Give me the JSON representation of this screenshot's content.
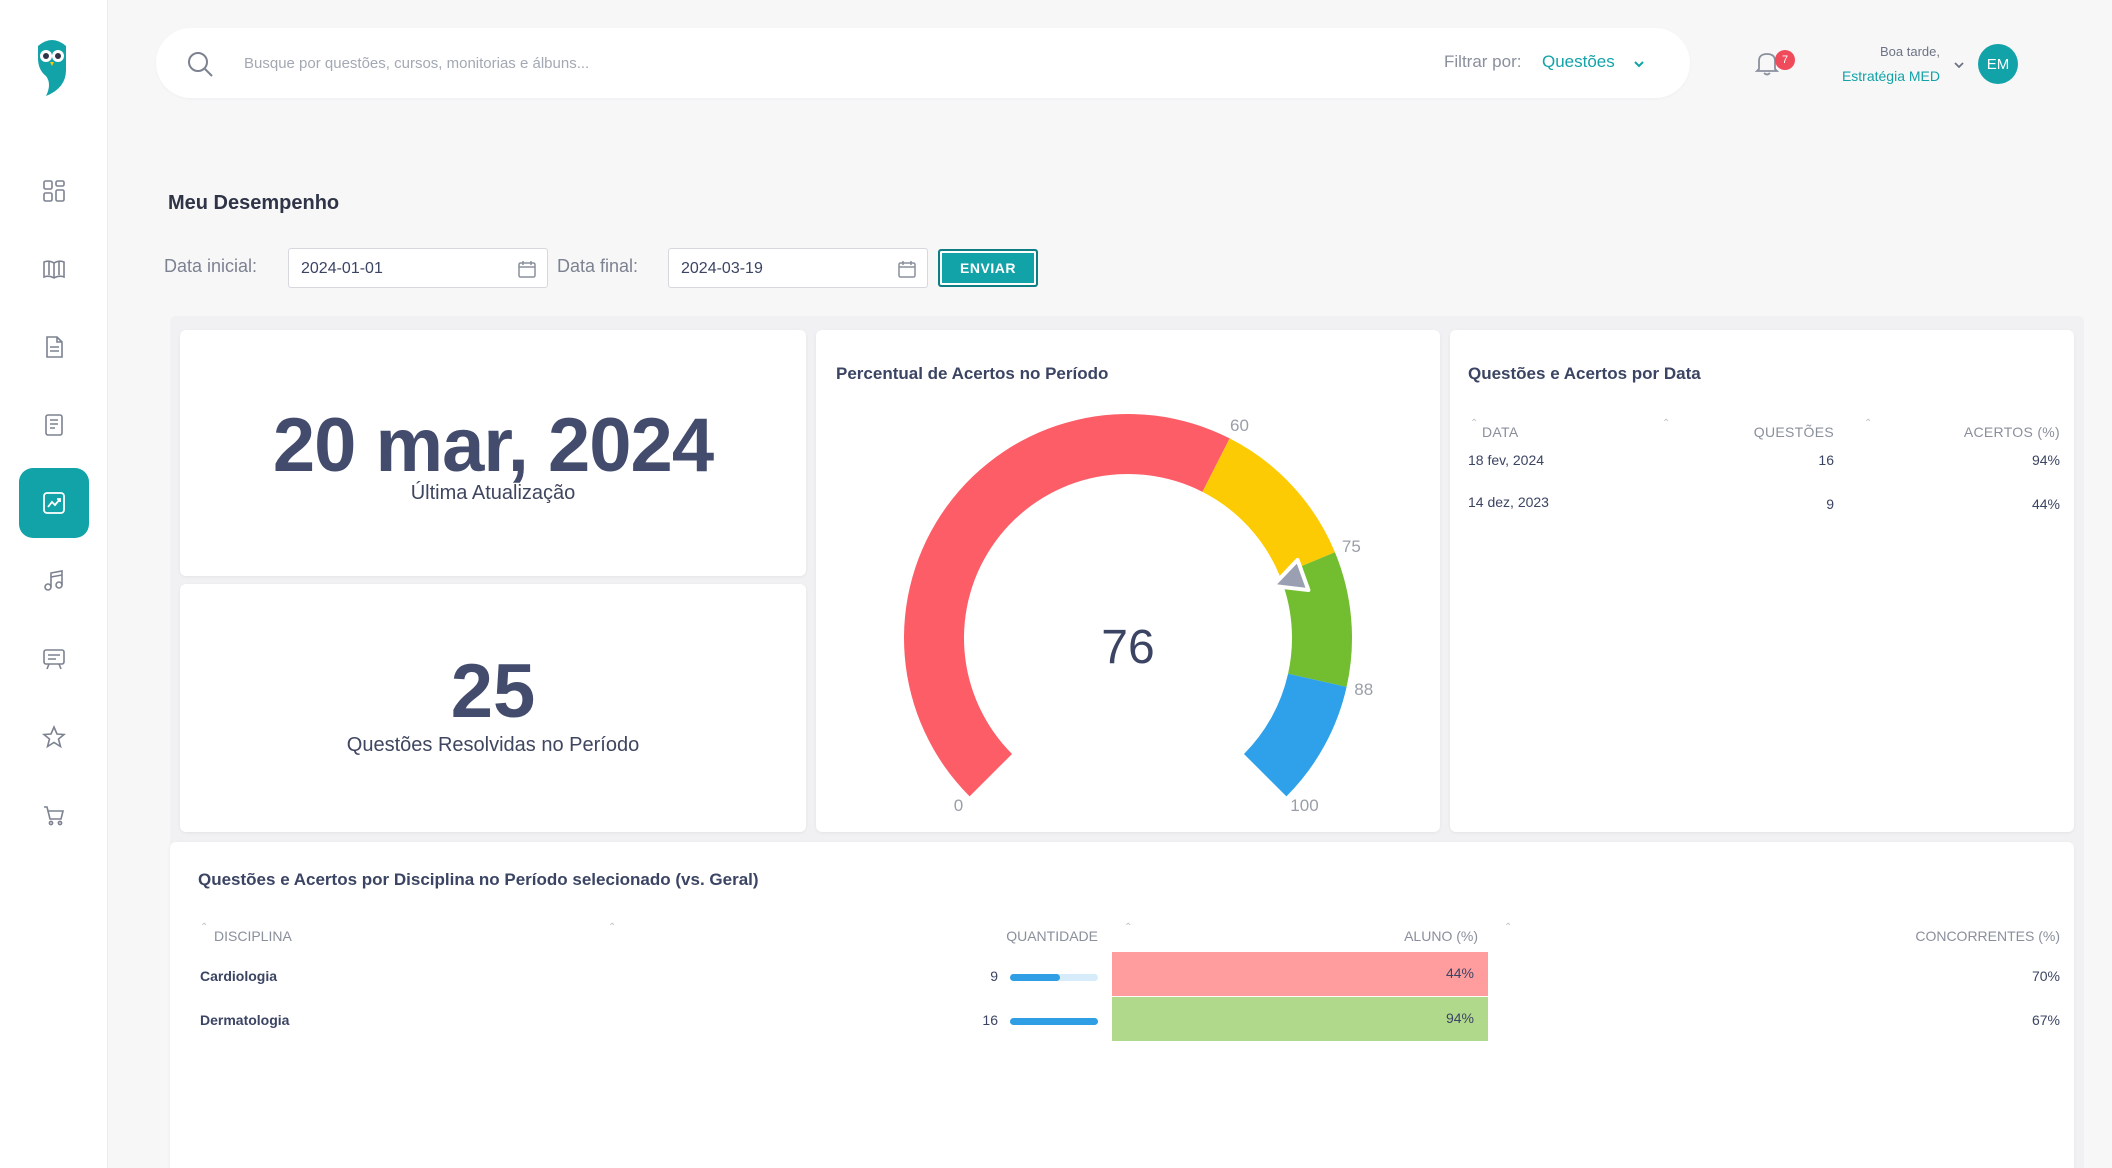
{
  "search": {
    "placeholder": "Busque por questões, cursos, monitorias e álbuns..."
  },
  "filter": {
    "label": "Filtrar por:",
    "value": "Questões"
  },
  "notifications": {
    "count": "7"
  },
  "user": {
    "greeting": "Boa tarde,",
    "name": "Estratégia MED",
    "initials": "EM"
  },
  "page": {
    "title": "Meu Desempenho"
  },
  "date_filter": {
    "start_label": "Data inicial:",
    "start_value": "2024-01-01",
    "end_label": "Data final:",
    "end_value": "2024-03-19",
    "submit_label": "ENVIAR"
  },
  "last_update": {
    "value": "20 mar, 2024",
    "label": "Última Atualização"
  },
  "resolved": {
    "value": "25",
    "label": "Questões Resolvidas no Período"
  },
  "gauge": {
    "title": "Percentual de Acertos no Período",
    "value": 76,
    "display": "76",
    "min": 0,
    "max": 100,
    "bands": [
      {
        "from": 0,
        "to": 60,
        "color": "#fd5d67"
      },
      {
        "from": 60,
        "to": 75,
        "color": "#fdcb04"
      },
      {
        "from": 75,
        "to": 88,
        "color": "#72bd30"
      },
      {
        "from": 88,
        "to": 100,
        "color": "#2ea1ea"
      }
    ],
    "ticks": [
      "0",
      "60",
      "75",
      "88",
      "100"
    ]
  },
  "by_date": {
    "title": "Questões e Acertos por Data",
    "headers": [
      "DATA",
      "QUESTÕES",
      "ACERTOS (%)"
    ],
    "rows": [
      {
        "date": "18 fev, 2024",
        "questions": "16",
        "score": "94%"
      },
      {
        "date": "14 dez, 2023",
        "questions": "9",
        "score": "44%"
      }
    ]
  },
  "by_subject": {
    "title": "Questões e Acertos por Disciplina no Período selecionado (vs. Geral)",
    "headers": [
      "DISCIPLINA",
      "QUANTIDADE",
      "ALUNO (%)",
      "CONCORRENTES (%)"
    ],
    "rows": [
      {
        "name": "Cardiologia",
        "quantity": "9",
        "quantity_fraction": 0.5625,
        "student": "44%",
        "student_color": "#fe9c9e",
        "competitors": "70%"
      },
      {
        "name": "Dermatologia",
        "quantity": "16",
        "quantity_fraction": 1.0,
        "student": "94%",
        "student_color": "#b0d98b",
        "competitors": "67%"
      }
    ]
  },
  "colors": {
    "accent": "#12a3a8",
    "badge": "#ef4b5a",
    "bar": "#2f9ee4"
  }
}
